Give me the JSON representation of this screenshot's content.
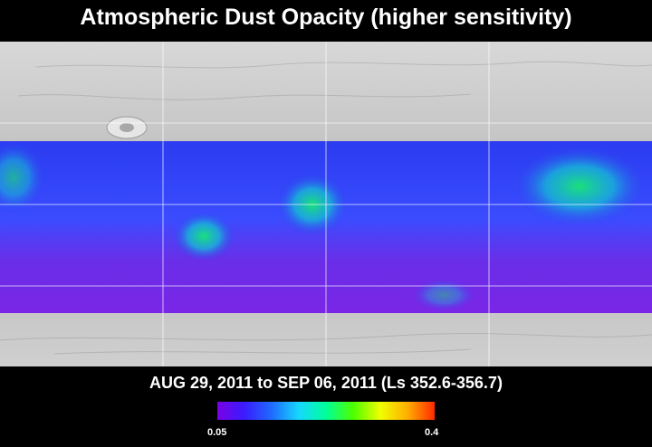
{
  "title": "Atmospheric Dust Opacity (higher sensitivity)",
  "date_range": "AUG 29, 2011 to SEP 06, 2011 (Ls 352.6-356.7)",
  "colorbar": {
    "min_label": "0.05",
    "max_label": "0.4",
    "min_value": 0.05,
    "max_value": 0.4,
    "colors": [
      "#7a00e6",
      "#3a1cff",
      "#1f6bff",
      "#16d8ff",
      "#00ff9a",
      "#4cff00",
      "#f0ff00",
      "#ffae00",
      "#ff2a00"
    ]
  },
  "map": {
    "surface_color": "#bdbdbd",
    "grid_color": "#ffffff",
    "dust_colors": {
      "low": "#7a26e6",
      "mid": "#2b3cf0",
      "high": "#19e0a0"
    }
  }
}
